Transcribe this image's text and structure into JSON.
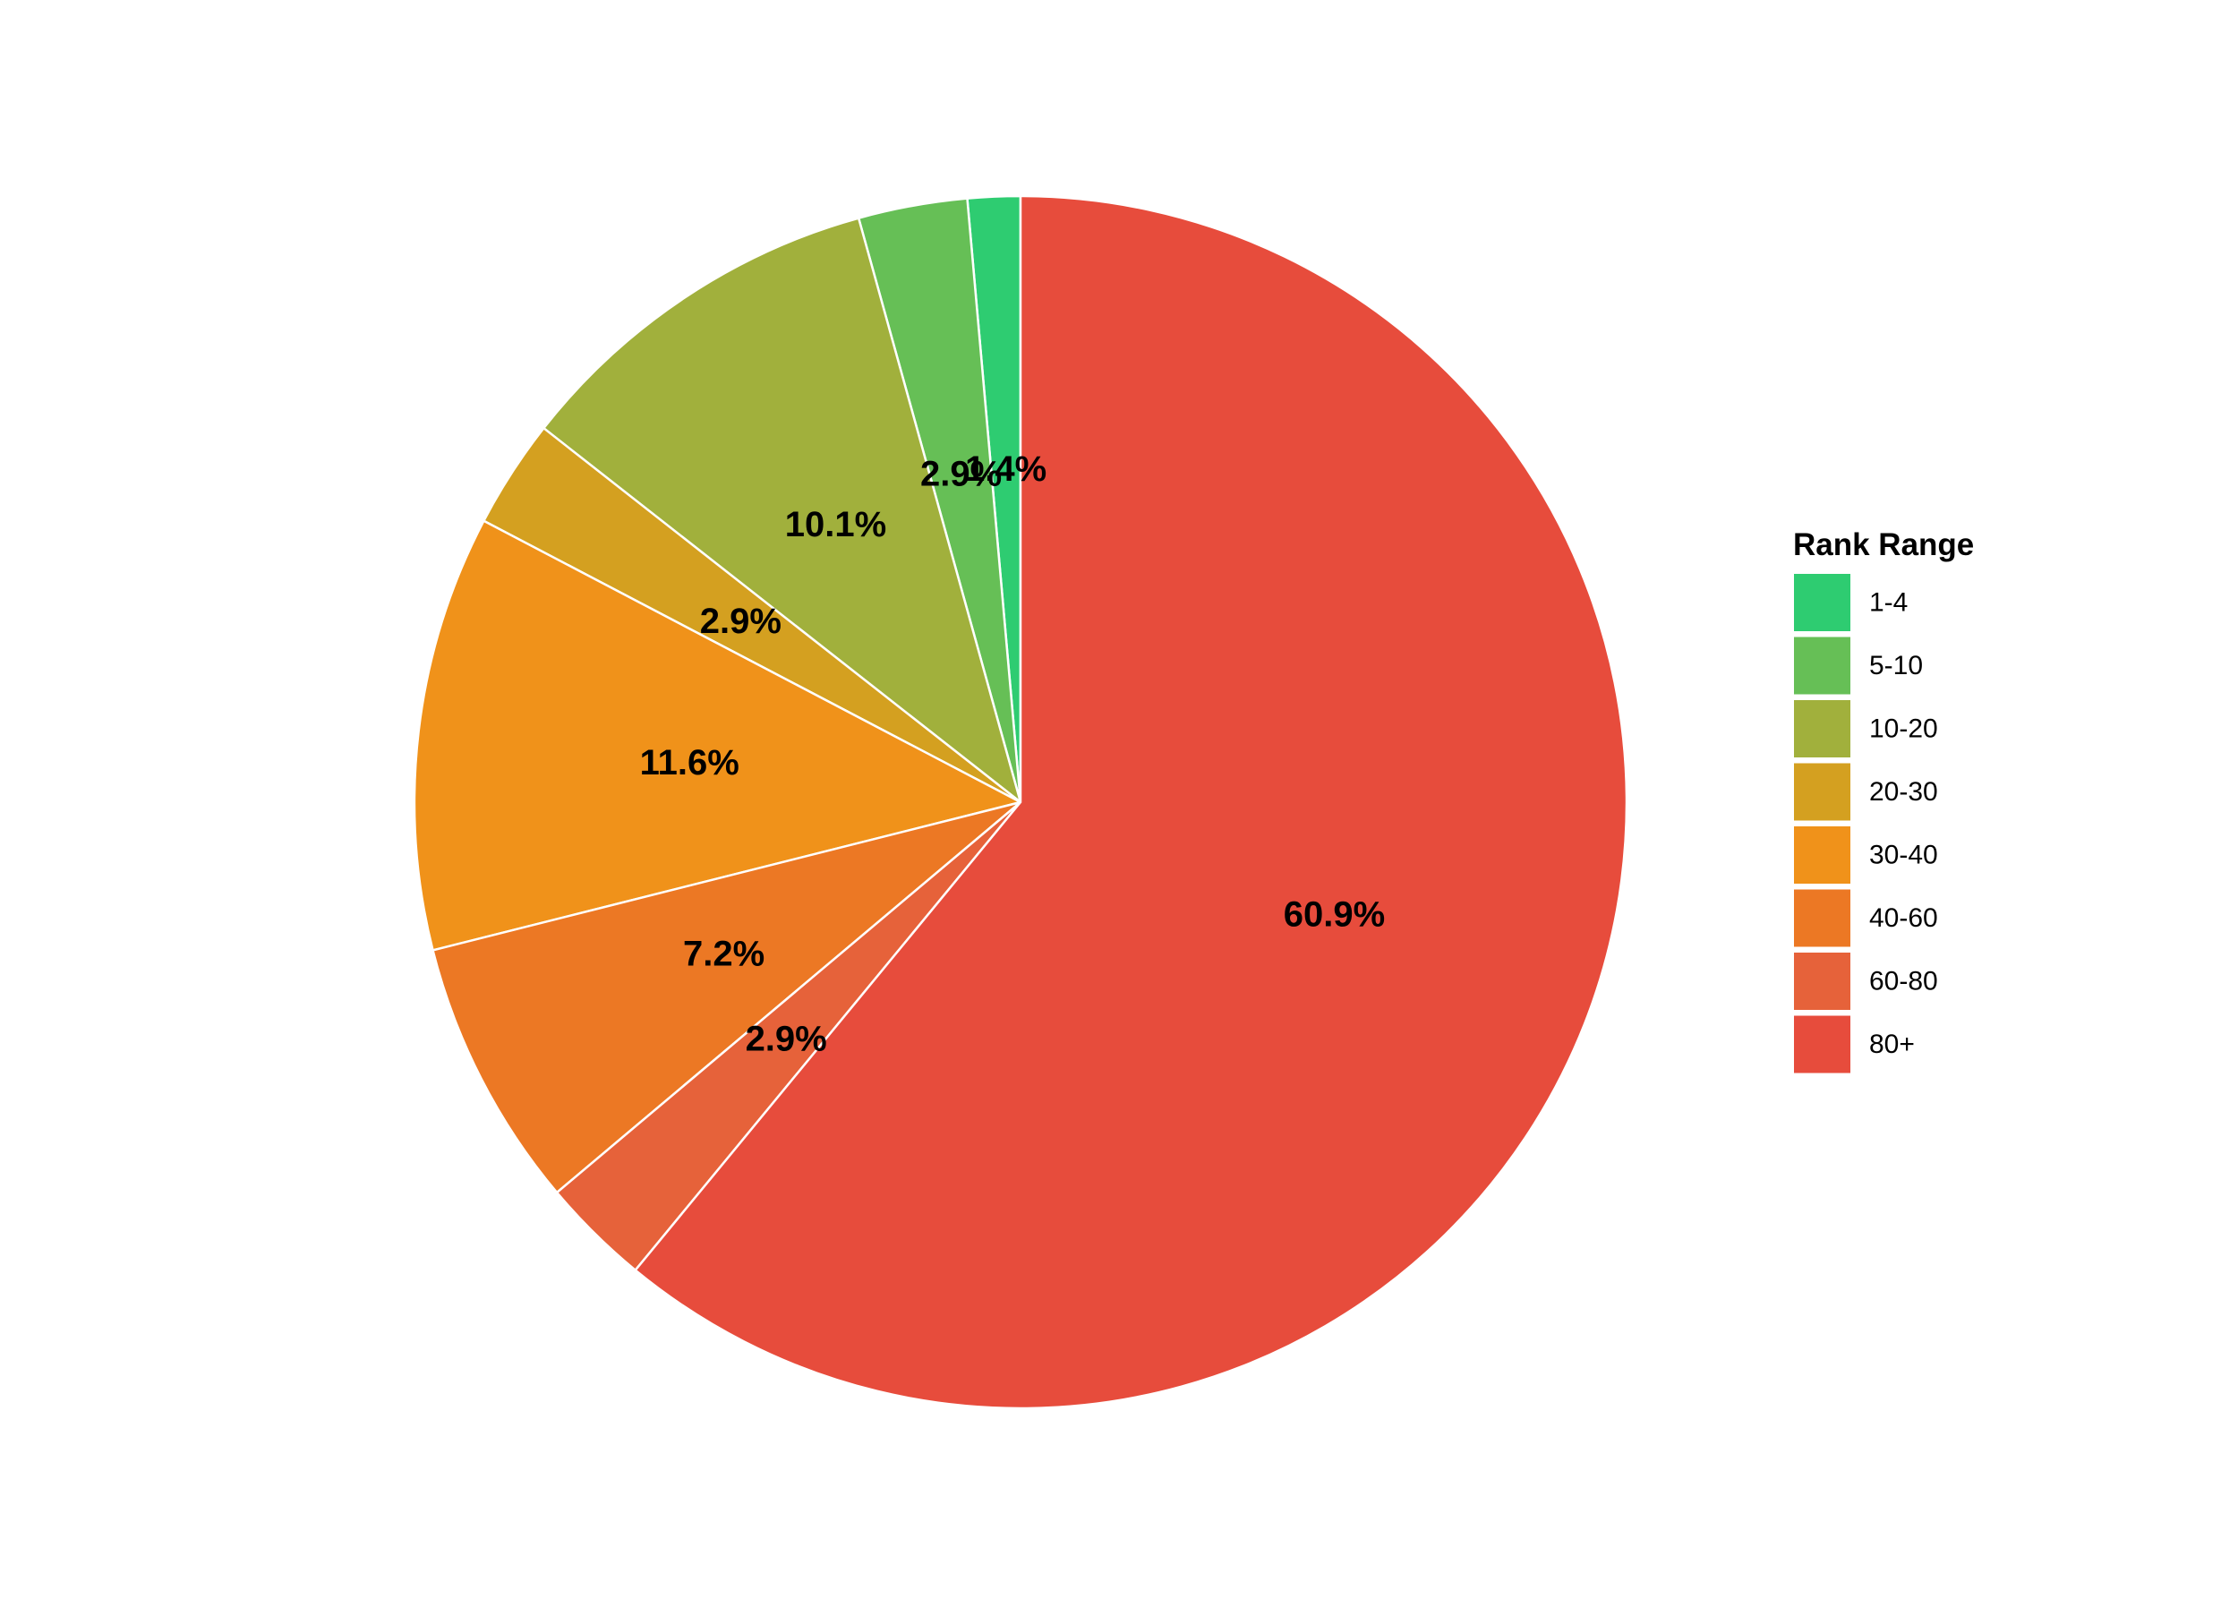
{
  "chart_data": {
    "type": "pie",
    "title": "",
    "start": "12 o'clock",
    "direction": "counterclockwise from top for small ranks",
    "slices": [
      {
        "label": "1-4",
        "value": 1.4,
        "display": "1.4%",
        "color": "#2ecc71"
      },
      {
        "label": "5-10",
        "value": 2.9,
        "display": "2.9%",
        "color": "#66bf56"
      },
      {
        "label": "10-20",
        "value": 10.1,
        "display": "10.1%",
        "color": "#a1b03c"
      },
      {
        "label": "20-30",
        "value": 2.9,
        "display": "2.9%",
        "color": "#d4a020"
      },
      {
        "label": "30-40",
        "value": 11.6,
        "display": "11.6%",
        "color": "#f0921a"
      },
      {
        "label": "40-60",
        "value": 7.2,
        "display": "7.2%",
        "color": "#ec7824"
      },
      {
        "label": "60-80",
        "value": 2.9,
        "display": "2.9%",
        "color": "#e6623a"
      },
      {
        "label": "80+",
        "value": 60.9,
        "display": "60.9%",
        "color": "#e74c3c"
      }
    ],
    "legend": {
      "title": "Rank Range",
      "placement": "right"
    }
  }
}
